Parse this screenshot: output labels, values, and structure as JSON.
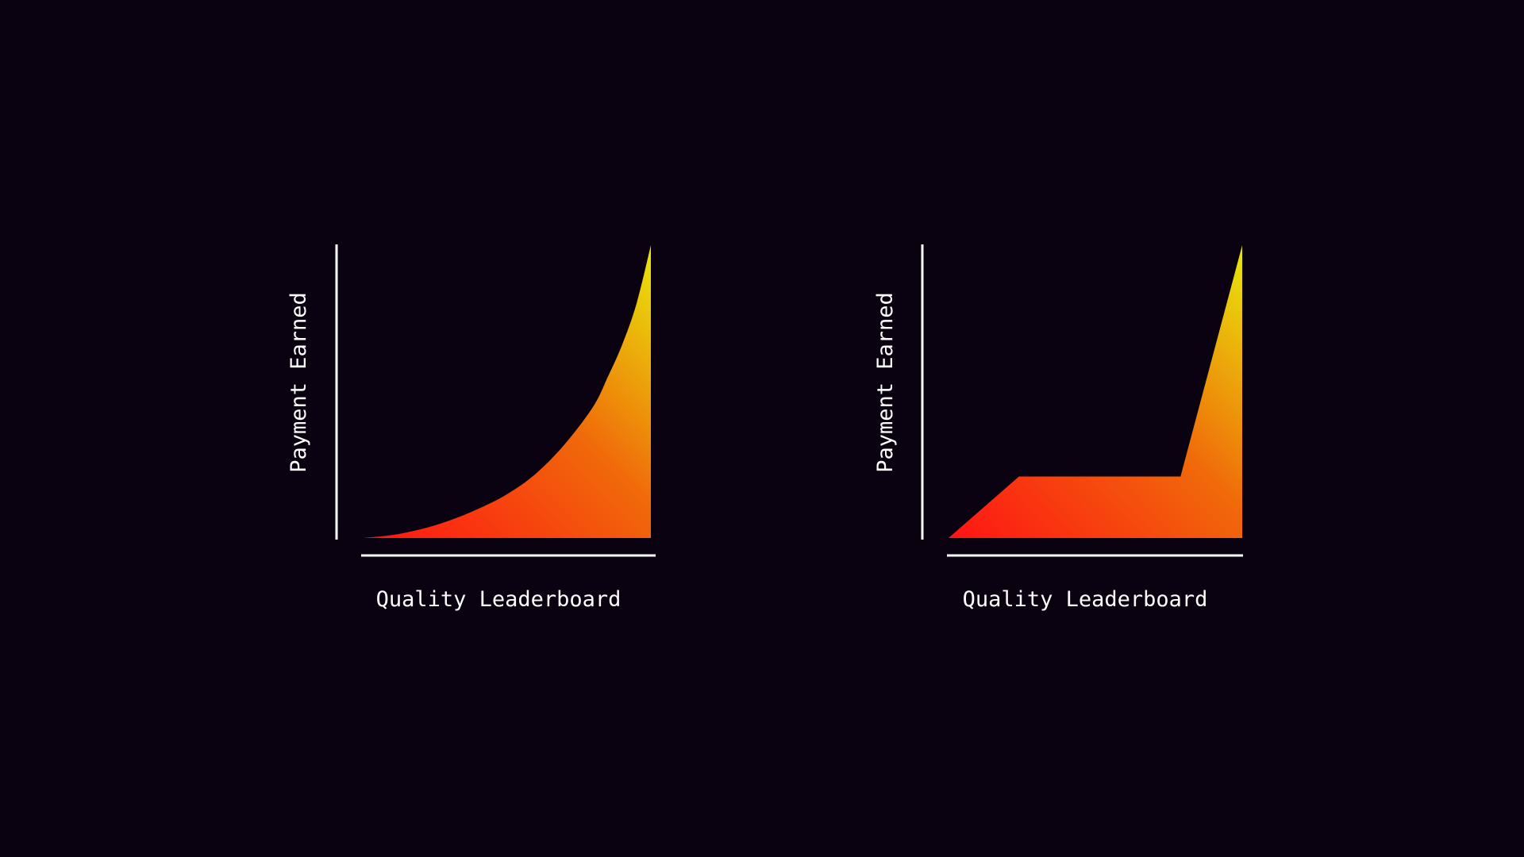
{
  "background_color": "#0a0210",
  "axis_color": "#ffffff",
  "gradient_colors": {
    "low": "#ff1414",
    "mid": "#f06a0a",
    "high": "#e8e80a"
  },
  "chart_data": [
    {
      "type": "area",
      "curve": "exponential",
      "xlabel": "Quality Leaderboard",
      "ylabel": "Payment Earned",
      "x": [
        0,
        0.1,
        0.2,
        0.3,
        0.4,
        0.5,
        0.6,
        0.7,
        0.8,
        0.85,
        0.9,
        0.95,
        1.0
      ],
      "y": [
        0,
        0.01,
        0.03,
        0.06,
        0.1,
        0.15,
        0.22,
        0.32,
        0.45,
        0.55,
        0.66,
        0.8,
        1.0
      ],
      "xlim": [
        0,
        1
      ],
      "ylim": [
        0,
        1
      ],
      "grid": false,
      "legend": "none"
    },
    {
      "type": "area",
      "curve": "piecewise-linear",
      "xlabel": "Quality Leaderboard",
      "ylabel": "Payment Earned",
      "x": [
        0,
        0.24,
        0.79,
        1.0
      ],
      "y": [
        0,
        0.21,
        0.21,
        1.0
      ],
      "xlim": [
        0,
        1
      ],
      "ylim": [
        0,
        1
      ],
      "grid": false,
      "legend": "none"
    }
  ]
}
